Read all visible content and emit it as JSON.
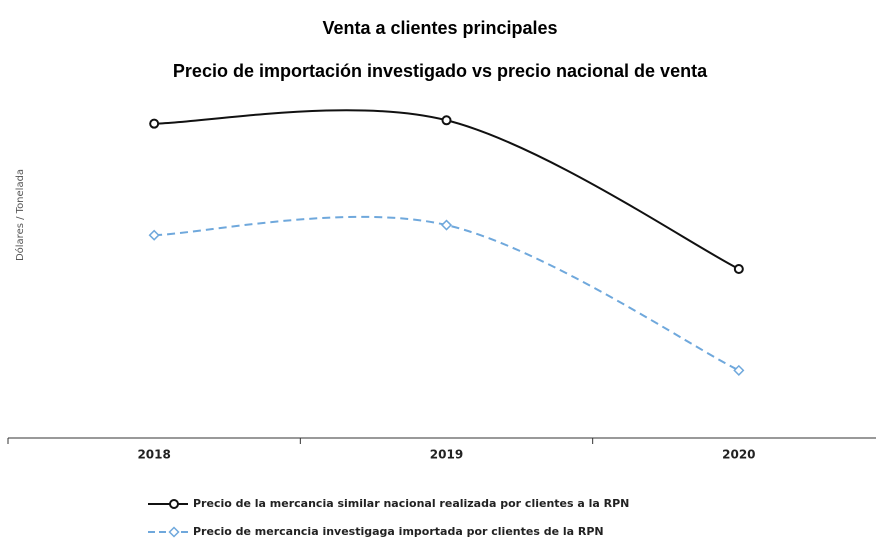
{
  "chart_data": {
    "type": "line",
    "title": "Venta a clientes principales",
    "subtitle": "Precio de importación investigado vs precio nacional de venta",
    "y_label": "Dólares / Tonelada",
    "categories": [
      "2018",
      "2019",
      "2020"
    ],
    "ylim": [
      0,
      100
    ],
    "grid": false,
    "legend": "bottom",
    "series": [
      {
        "name": "Precio de la mercancia similar nacional realizada por clientes a la RPN",
        "color": "#111111",
        "dash": false,
        "marker": "circle",
        "values": [
          93,
          94,
          50
        ]
      },
      {
        "name": "Precio de mercancia investigaga importada por clientes de la RPN",
        "color": "#6fa8dc",
        "dash": true,
        "marker": "diamond",
        "values": [
          60,
          63,
          20
        ]
      }
    ]
  }
}
